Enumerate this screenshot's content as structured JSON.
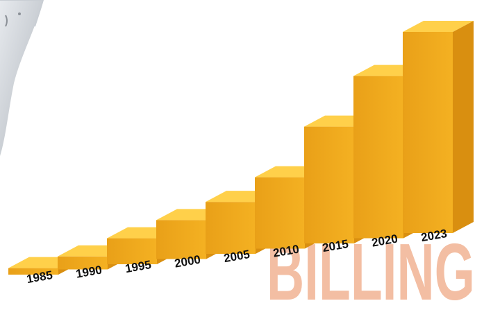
{
  "chart_data": {
    "type": "bar",
    "title": "",
    "xlabel": "",
    "ylabel": "",
    "categories": [
      "1985",
      "1990",
      "1995",
      "2000",
      "2005",
      "2010",
      "2015",
      "2020",
      "2023"
    ],
    "values": [
      1,
      2,
      4,
      6,
      8,
      11,
      18,
      25,
      31
    ],
    "ylim": [
      0,
      31
    ],
    "grid": false,
    "legend": "none",
    "colors": {
      "bar_front": "#f4b122",
      "bar_front_dark": "#e9a018",
      "bar_side": "#d98f10",
      "bar_top": "#ffd04a",
      "label_text": "#111111"
    }
  },
  "watermark": {
    "text": "BILLING",
    "color": "#f2b89a"
  },
  "decoration": {
    "top_left": "device-corner"
  }
}
